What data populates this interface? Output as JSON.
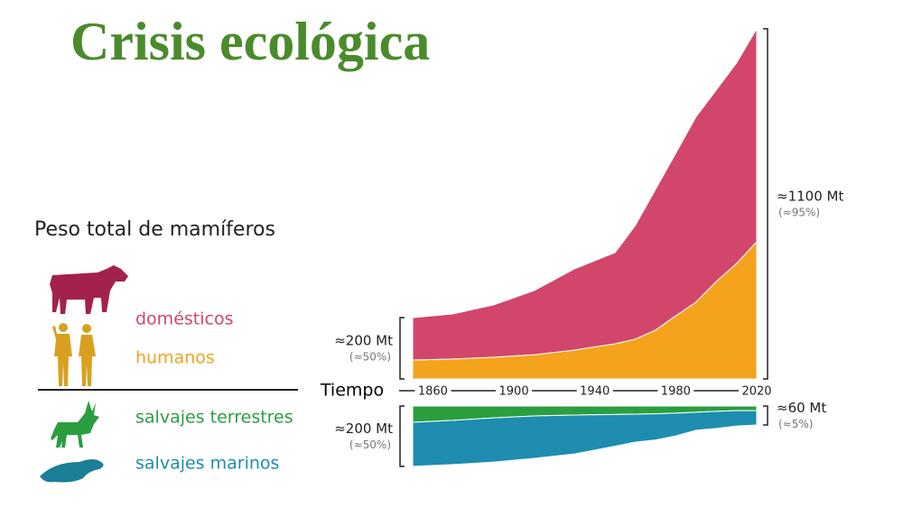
{
  "chart_data": [
    {
      "type": "area",
      "direction": "up",
      "title": "Crisis ecológica",
      "subtitle": "Peso total de mamíferos",
      "x": [
        1850,
        1870,
        1890,
        1910,
        1930,
        1950,
        1960,
        1970,
        1980,
        1990,
        2000,
        2010,
        2020
      ],
      "xlim": [
        1850,
        2020
      ],
      "series": [
        {
          "name": "domésticos",
          "color": "#d2466b",
          "values": [
            136,
            145,
            168,
            206,
            261,
            293,
            365,
            452,
            522,
            595,
            615,
            644,
            684
          ]
        },
        {
          "name": "humanos",
          "color": "#f5a31c",
          "values": [
            61,
            64,
            70,
            78,
            93,
            113,
            128,
            157,
            203,
            247,
            313,
            371,
            441
          ]
        }
      ],
      "annotations": {
        "left": {
          "text": "≈200 Mt",
          "note": "(≈50%)"
        },
        "right": {
          "text": "≈1100 Mt",
          "note": "(≈95%)"
        }
      }
    },
    {
      "type": "area",
      "direction": "down",
      "xlabel": "Tiempo",
      "x": [
        1850,
        1870,
        1890,
        1910,
        1930,
        1950,
        1960,
        1970,
        1980,
        1990,
        2000,
        2010,
        2020
      ],
      "xlim": [
        1850,
        2020
      ],
      "xticks": [
        1860,
        1900,
        1940,
        1980,
        2020
      ],
      "series": [
        {
          "name": "salvajes terrestres",
          "color": "#2b9e3f",
          "values": [
            52,
            46,
            38,
            32,
            29,
            27,
            26,
            25,
            23,
            20,
            17,
            15,
            15
          ]
        },
        {
          "name": "salvajes marinos",
          "color": "#1e8db0",
          "values": [
            142,
            142,
            142,
            136,
            125,
            102,
            90,
            84,
            73,
            58,
            55,
            49,
            46
          ]
        }
      ],
      "annotations": {
        "left": {
          "text": "≈200 Mt",
          "note": "(≈50%)"
        },
        "right": {
          "text": "≈60 Mt",
          "note": "(≈5%)"
        }
      }
    }
  ]
}
